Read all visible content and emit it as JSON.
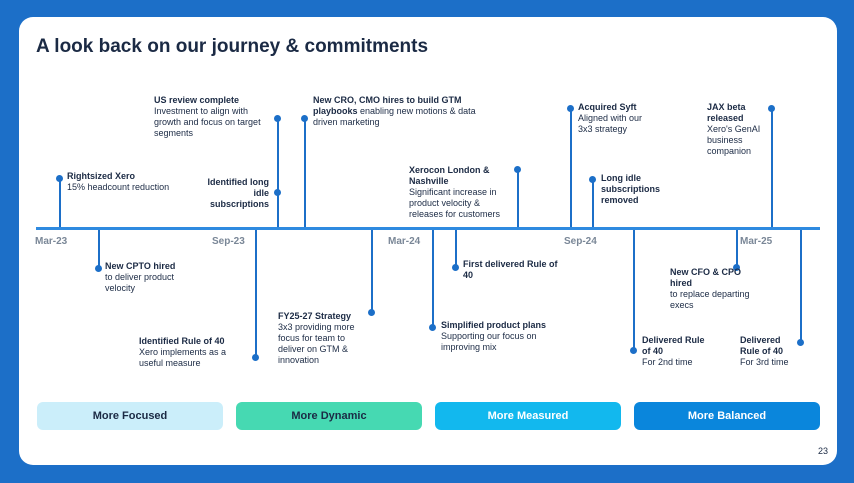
{
  "title": "A look back on our journey & commitments",
  "dates": [
    "Mar-23",
    "Sep-23",
    "Mar-24",
    "Sep-24",
    "Mar-25"
  ],
  "events": {
    "rightsized": {
      "title": "Rightsized Xero",
      "desc": "15% headcount reduction"
    },
    "cpto": {
      "title": "New CPTO hired",
      "desc": "to deliver product velocity"
    },
    "us_review": {
      "title": "US review complete",
      "desc": "Investment to align with growth and focus on target segments"
    },
    "rule40_id": {
      "title": "Identified Rule of 40",
      "desc": "Xero implements as a useful measure"
    },
    "idle_id": {
      "title": "Identified long idle subscriptions",
      "desc": ""
    },
    "cro": {
      "title": "New CRO, CMO hires to build GTM playbooks",
      "desc": "enabling new motions & data driven marketing"
    },
    "fy25": {
      "title": "FY25-27 Strategy",
      "desc": "3x3 providing more focus for team to deliver on GTM & innovation"
    },
    "xerocon": {
      "title": "Xerocon London & Nashville",
      "desc": "Significant increase in product velocity & releases for customers"
    },
    "simplified": {
      "title": "Simplified product plans",
      "desc": "Supporting our focus on improving mix"
    },
    "first_rule40": {
      "title": "First delivered Rule of 40",
      "desc": ""
    },
    "syft": {
      "title": "Acquired Syft",
      "desc": "Aligned with our 3x3 strategy"
    },
    "idle_removed": {
      "title": "Long idle subscriptions removed",
      "desc": ""
    },
    "delivered2": {
      "title": "Delivered Rule of 40",
      "desc": "For 2nd time"
    },
    "cfo": {
      "title": "New CFO & CPO hired",
      "desc": "to replace departing execs"
    },
    "jax": {
      "title": "JAX beta released",
      "desc": "Xero's GenAI business companion"
    },
    "delivered3": {
      "title": "Delivered Rule of 40",
      "desc": "For 3rd time"
    }
  },
  "pillars": [
    "More Focused",
    "More Dynamic",
    "More Measured",
    "More Balanced"
  ],
  "page_number": "23"
}
